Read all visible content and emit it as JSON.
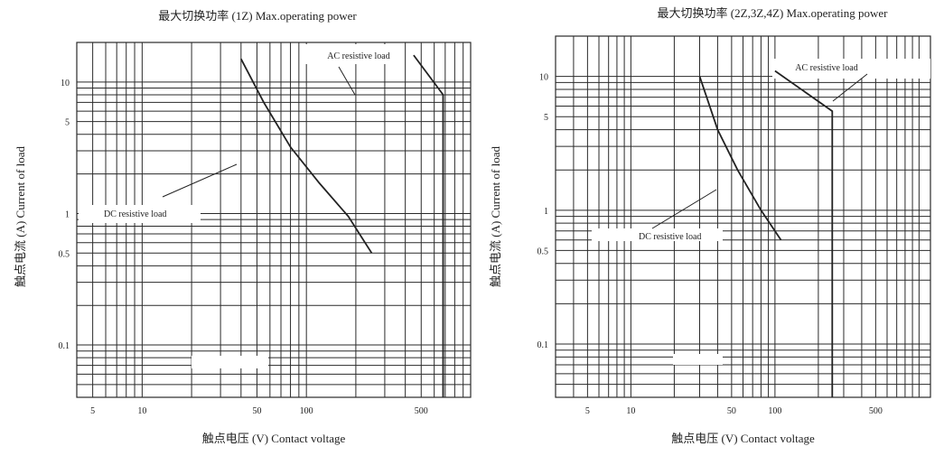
{
  "chart_data": [
    {
      "type": "line",
      "title": "最大切换功率  (1Z) Max.operating power",
      "xlabel": "触点电压  (V) Contact voltage",
      "ylabel": "触点电流  (A) Current of load",
      "x_scale": "log",
      "y_scale": "log",
      "xlim": [
        4,
        1000
      ],
      "ylim": [
        0.04,
        20
      ],
      "x_ticks": [
        5,
        10,
        50,
        100,
        500
      ],
      "x_tick_labels": [
        "5",
        "10",
        "50",
        "100",
        "500"
      ],
      "y_ticks": [
        0.1,
        0.5,
        1,
        5,
        10
      ],
      "y_tick_labels": [
        "0.1",
        "0.5",
        "1",
        "5",
        "10"
      ],
      "grid": true,
      "series": [
        {
          "name": "AC resistive load",
          "x": [
            450,
            680,
            680
          ],
          "y": [
            16,
            8,
            0.04
          ]
        },
        {
          "name": "DC resistive load",
          "x": [
            40,
            55,
            80,
            120,
            180,
            250
          ],
          "y": [
            15,
            7,
            3.2,
            1.7,
            0.95,
            0.5
          ]
        }
      ],
      "annotations": [
        {
          "text": "AC resistive load",
          "x": 560,
          "y": 11
        },
        {
          "text": "DC resistive load",
          "x": 40,
          "y": 1.8
        }
      ]
    },
    {
      "type": "line",
      "title": "最大切换功率  (2Z,3Z,4Z) Max.operating power",
      "xlabel": "触点电压  (V) Contact voltage",
      "ylabel": "触点电流  (A) Current of load",
      "x_scale": "log",
      "y_scale": "log",
      "xlim": [
        3,
        1200
      ],
      "ylim": [
        0.04,
        20
      ],
      "x_ticks": [
        5,
        10,
        50,
        100,
        500
      ],
      "x_tick_labels": [
        "5",
        "10",
        "50",
        "100",
        "500"
      ],
      "y_ticks": [
        0.1,
        0.5,
        1,
        5,
        10
      ],
      "y_tick_labels": [
        "0.1",
        "0.5",
        "1",
        "5",
        "10"
      ],
      "grid": true,
      "series": [
        {
          "name": "AC resistive load",
          "x": [
            100,
            250,
            250
          ],
          "y": [
            11,
            5.5,
            0.04
          ]
        },
        {
          "name": "DC resistive load",
          "x": [
            30,
            40,
            55,
            80,
            110
          ],
          "y": [
            10,
            4,
            2,
            1,
            0.6
          ]
        }
      ],
      "annotations": [
        {
          "text": "AC resistive load",
          "x": 200,
          "y": 8
        },
        {
          "text": "DC resistive load",
          "x": 30,
          "y": 1.4
        }
      ]
    }
  ]
}
